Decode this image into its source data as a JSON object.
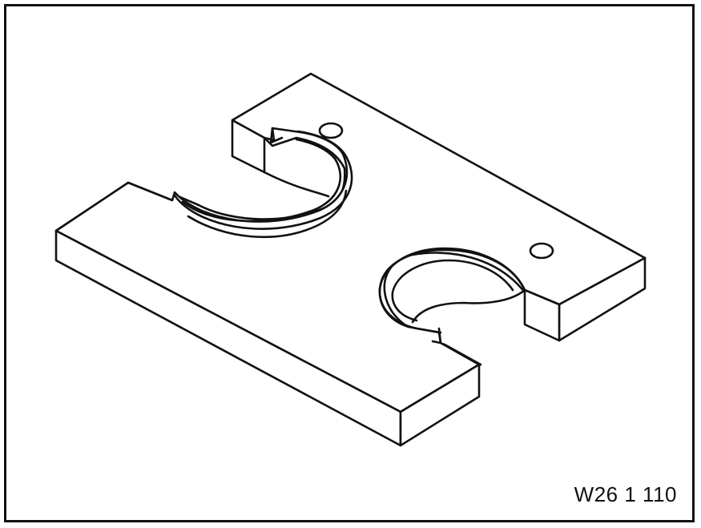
{
  "figure": {
    "caption": "W26 1 110",
    "subject": "slotted-plate-tool",
    "colors": {
      "line": "#111111",
      "fill": "#ffffff",
      "background": "#ffffff"
    }
  }
}
